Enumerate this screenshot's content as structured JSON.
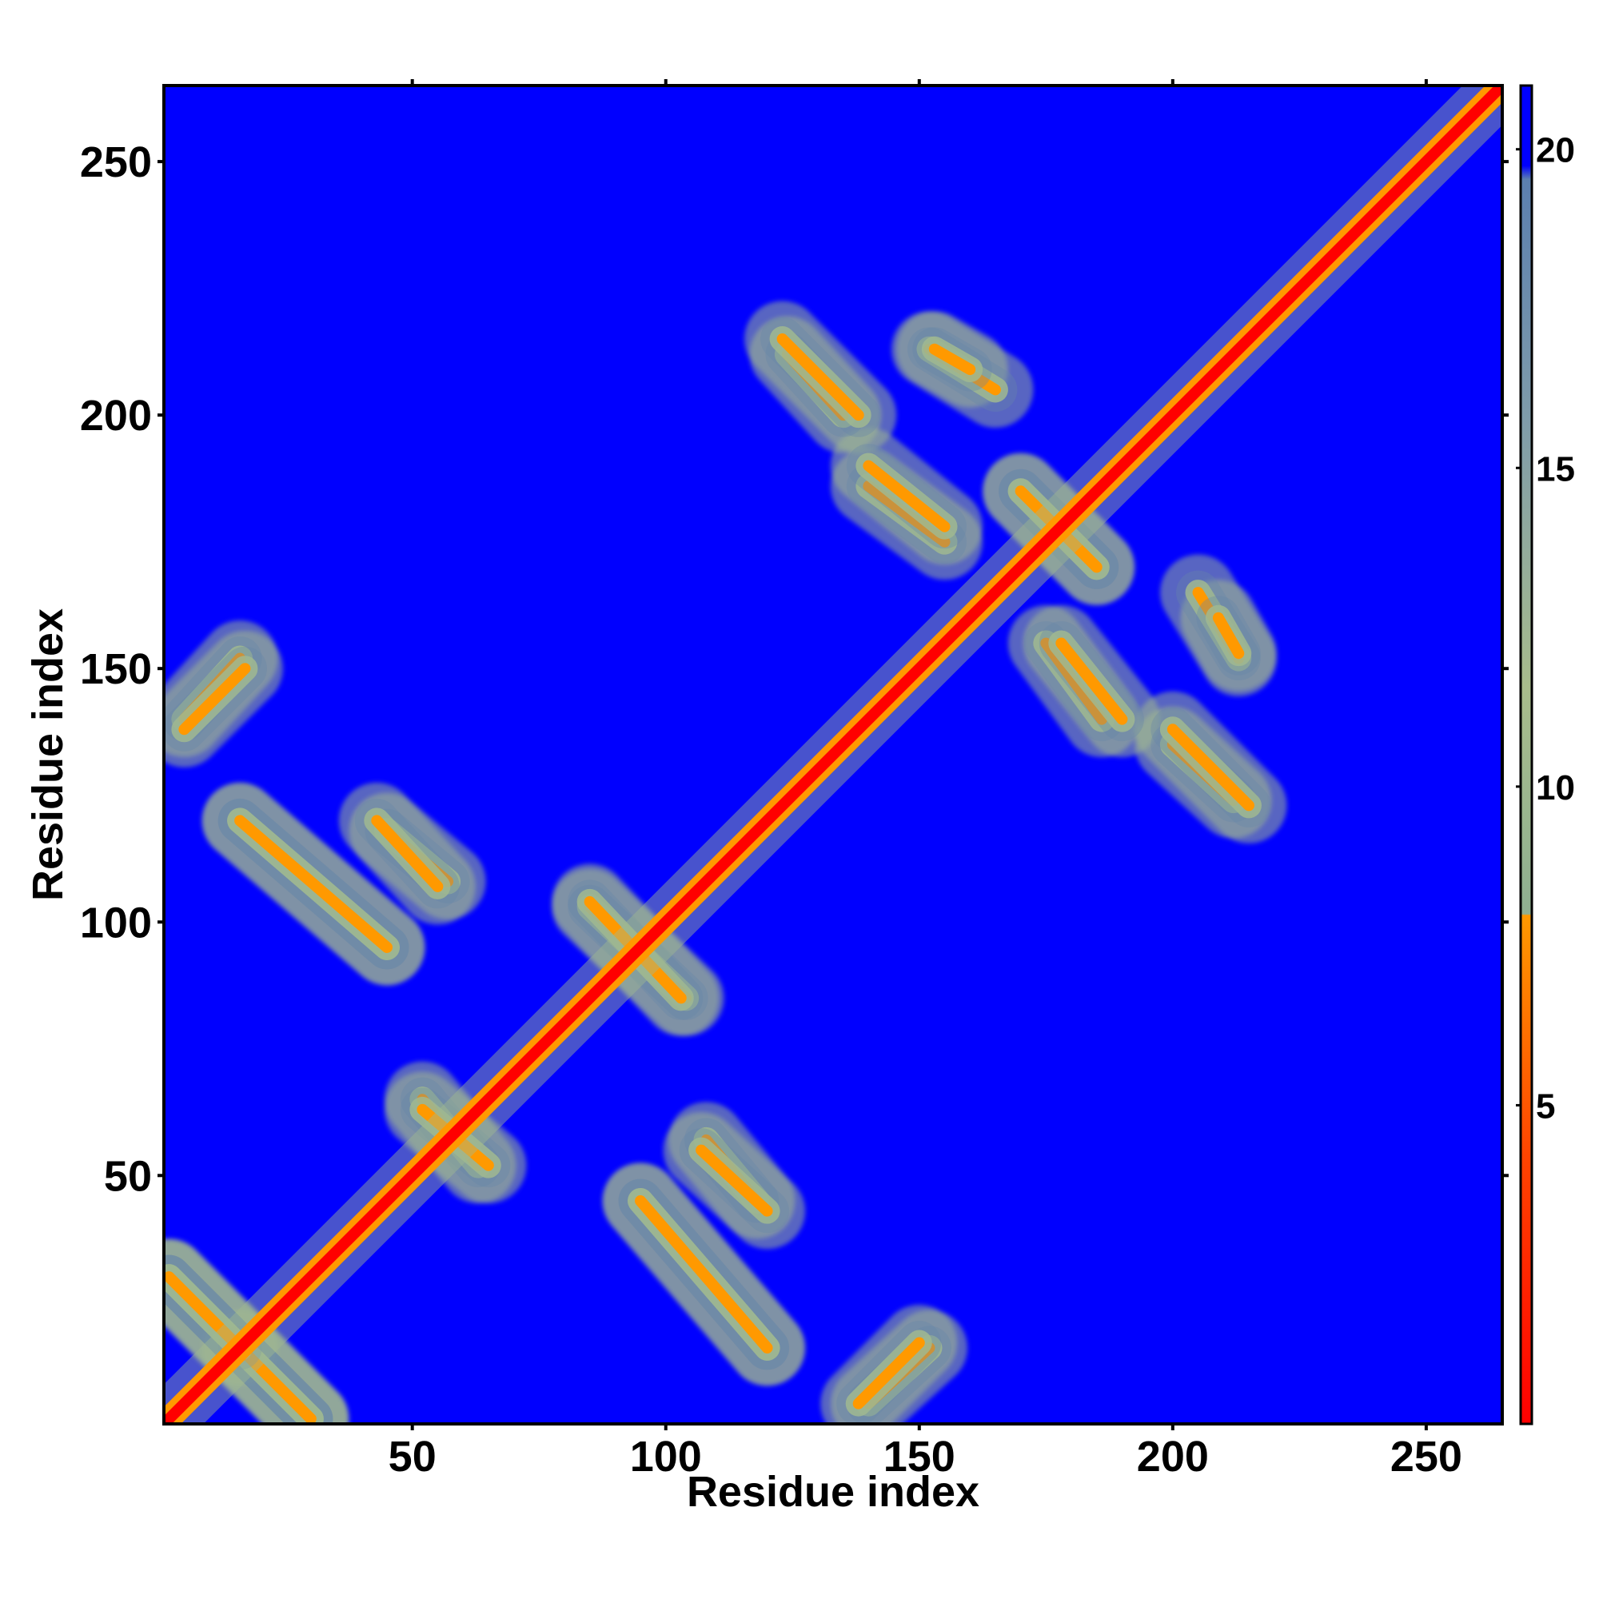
{
  "chart_data": {
    "type": "heatmap",
    "title": "",
    "xlabel": "Residue index",
    "ylabel": "Residue index",
    "xlim": [
      1,
      265
    ],
    "ylim": [
      1,
      265
    ],
    "x_ticks": [
      50,
      100,
      150,
      200,
      250
    ],
    "y_ticks": [
      50,
      100,
      150,
      200,
      250
    ],
    "colorbar": {
      "ticks": [
        5,
        10,
        15,
        20
      ],
      "range": [
        0,
        21
      ],
      "colors": {
        "low": "#ff0000",
        "mid_low": "#ff9900",
        "mid": "#a0b890",
        "high": "#6688aa",
        "background": "#0000ff"
      }
    },
    "diagonal": {
      "from": 1,
      "to": 265,
      "value": 1
    },
    "contact_bands": [
      {
        "name": "helix-helix-a",
        "x": [
          2,
          30
        ],
        "y": [
          30,
          2
        ],
        "value": 6
      },
      {
        "name": "helix-helix-b",
        "x": [
          16,
          30
        ],
        "y": [
          16,
          2
        ],
        "value": 6
      },
      {
        "name": "helix-helix-c",
        "x": [
          5,
          16
        ],
        "y": [
          140,
          152
        ],
        "value": 6
      },
      {
        "name": "helix-helix-d",
        "x": [
          16,
          45
        ],
        "y": [
          120,
          95
        ],
        "value": 6
      },
      {
        "name": "helix-helix-e",
        "x": [
          45,
          57
        ],
        "y": [
          118,
          108
        ],
        "value": 6
      },
      {
        "name": "helix-helix-f",
        "x": [
          52,
          63
        ],
        "y": [
          65,
          52
        ],
        "value": 6
      },
      {
        "name": "helix-helix-g",
        "x": [
          95,
          120
        ],
        "y": [
          45,
          16
        ],
        "value": 6
      },
      {
        "name": "helix-helix-h",
        "x": [
          107,
          120
        ],
        "y": [
          55,
          43
        ],
        "value": 6
      },
      {
        "name": "helix-helix-i",
        "x": [
          85,
          104
        ],
        "y": [
          103,
          85
        ],
        "value": 6
      },
      {
        "name": "helix-helix-j",
        "x": [
          138,
          150
        ],
        "y": [
          5,
          17
        ],
        "value": 6
      },
      {
        "name": "helix-helix-k",
        "x": [
          124,
          135
        ],
        "y": [
          212,
          200
        ],
        "value": 6
      },
      {
        "name": "helix-helix-l",
        "x": [
          140,
          155
        ],
        "y": [
          186,
          175
        ],
        "value": 6
      },
      {
        "name": "helix-helix-m",
        "x": [
          152,
          165
        ],
        "y": [
          213,
          205
        ],
        "value": 6
      },
      {
        "name": "helix-helix-n",
        "x": [
          170,
          185
        ],
        "y": [
          185,
          170
        ],
        "value": 6
      },
      {
        "name": "helix-helix-o",
        "x": [
          178,
          190
        ],
        "y": [
          155,
          140
        ],
        "value": 6
      },
      {
        "name": "helix-helix-p",
        "x": [
          200,
          215
        ],
        "y": [
          138,
          123
        ],
        "value": 6
      },
      {
        "name": "helix-helix-q",
        "x": [
          209,
          213
        ],
        "y": [
          160,
          153
        ],
        "value": 6
      }
    ]
  }
}
